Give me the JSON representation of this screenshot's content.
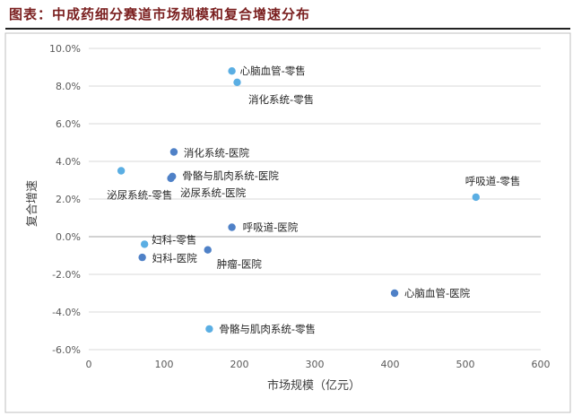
{
  "header": {
    "title": "图表：中成药细分赛道市场规模和复合增速分布"
  },
  "chart_data": {
    "type": "scatter",
    "title": "",
    "xlabel": "市场规模（亿元）",
    "ylabel": "复合增速",
    "xlim": [
      0,
      600
    ],
    "ylim": [
      -0.06,
      0.1
    ],
    "x_ticks": [
      0,
      100,
      200,
      300,
      400,
      500,
      600
    ],
    "y_ticks": [
      -0.06,
      -0.04,
      -0.02,
      0.0,
      0.02,
      0.04,
      0.06,
      0.08,
      0.1
    ],
    "x_tick_labels": [
      "0",
      "100",
      "200",
      "300",
      "400",
      "500",
      "600"
    ],
    "y_tick_labels": [
      "-6.0%",
      "-4.0%",
      "-2.0%",
      "0.0%",
      "2.0%",
      "4.0%",
      "6.0%",
      "8.0%",
      "10.0%"
    ],
    "grid": "horizontal",
    "colors": {
      "retail": "#5aaee3",
      "hospital": "#4f81c7",
      "grid": "#d9d9d9",
      "zero_line": "#a6a6a6"
    },
    "points": [
      {
        "label": "心脑血管-零售",
        "x": 190,
        "y": 0.088,
        "group": "retail"
      },
      {
        "label": "",
        "x": 197,
        "y": 0.082,
        "group": "retail"
      },
      {
        "label": "消化系统-零售",
        "x": null,
        "y": null,
        "group": "retail"
      },
      {
        "label": "消化系统-医院",
        "x": 113,
        "y": 0.045,
        "group": "hospital"
      },
      {
        "label": "骨骼与肌肉系统-医院",
        "x": 111,
        "y": 0.032,
        "group": "hospital"
      },
      {
        "label": "",
        "x": 109,
        "y": 0.031,
        "group": "hospital"
      },
      {
        "label": "泌尿系统-医院",
        "x": null,
        "y": null,
        "group": "hospital"
      },
      {
        "label": "泌尿系统-零售",
        "x": 43,
        "y": 0.035,
        "group": "retail"
      },
      {
        "label": "呼吸道-零售",
        "x": 514,
        "y": 0.021,
        "group": "retail"
      },
      {
        "label": "呼吸道-医院",
        "x": 190,
        "y": 0.005,
        "group": "hospital"
      },
      {
        "label": "妇科-零售",
        "x": 74,
        "y": -0.004,
        "group": "retail"
      },
      {
        "label": "妇科-医院",
        "x": 71,
        "y": -0.011,
        "group": "hospital"
      },
      {
        "label": "肿瘤-医院",
        "x": 158,
        "y": -0.007,
        "group": "hospital"
      },
      {
        "label": "心脑血管-医院",
        "x": 406,
        "y": -0.03,
        "group": "hospital"
      },
      {
        "label": "骨骼与肌肉系统-零售",
        "x": 160,
        "y": -0.049,
        "group": "retail"
      }
    ]
  }
}
